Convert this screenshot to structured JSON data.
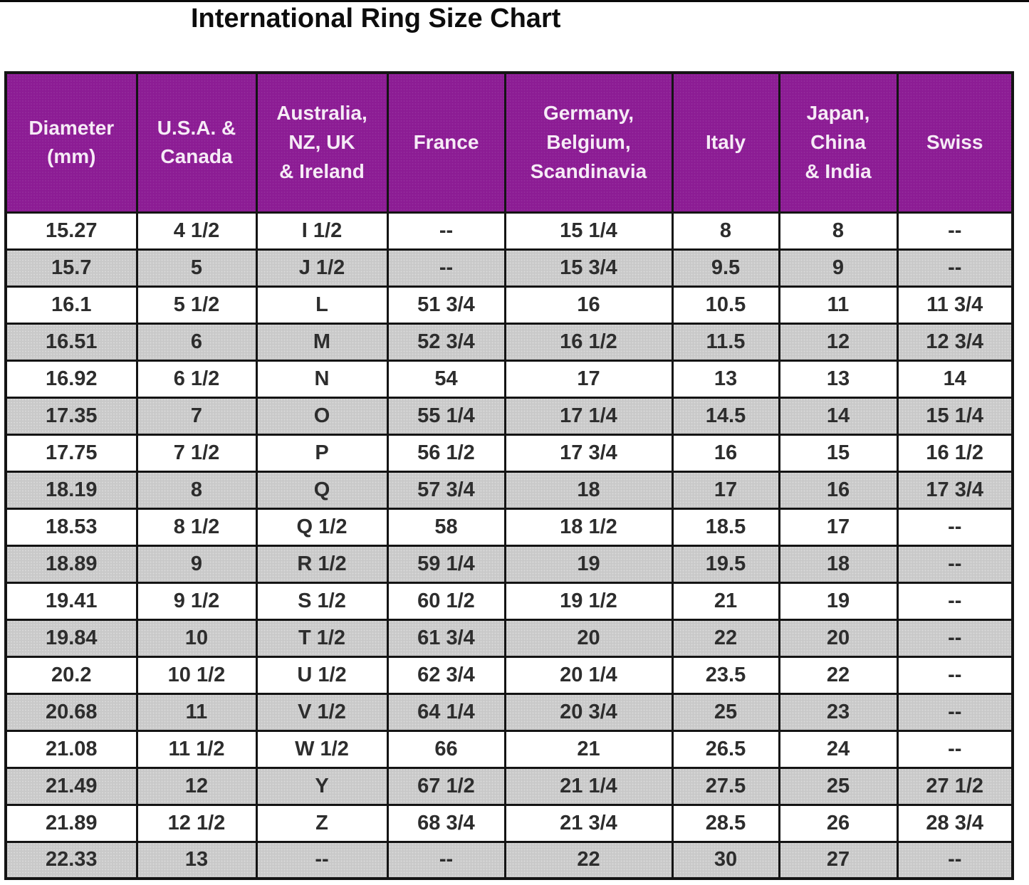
{
  "title": "International Ring Size Chart",
  "colors": {
    "header_bg": "#8C1C94",
    "header_text": "#F6EBF6",
    "stripe_gray": "#C9C9C9",
    "grid_line": "#141414",
    "data_text": "#2D2D2D",
    "page_bg": "#FFFFFF",
    "title_text": "#0D0D0D"
  },
  "table": {
    "header_display": [
      "Diameter\n(mm)",
      "U.S.A. &\nCanada",
      "Australia,\nNZ, UK\n& Ireland",
      "France",
      "Germany,\nBelgium,\nScandinavia",
      "Italy",
      "Japan,\nChina\n& India",
      "Swiss"
    ]
  },
  "chart_data": {
    "type": "table",
    "title": "International Ring Size Chart",
    "columns": [
      "Diameter (mm)",
      "U.S.A. & Canada",
      "Australia, NZ, UK & Ireland",
      "France",
      "Germany, Belgium, Scandinavia",
      "Italy",
      "Japan, China & India",
      "Swiss"
    ],
    "rows": [
      [
        "15.27",
        "4 1/2",
        "I 1/2",
        "--",
        "15 1/4",
        "8",
        "8",
        "--"
      ],
      [
        "15.7",
        "5",
        "J 1/2",
        "--",
        "15 3/4",
        "9.5",
        "9",
        "--"
      ],
      [
        "16.1",
        "5 1/2",
        "L",
        "51 3/4",
        "16",
        "10.5",
        "11",
        "11 3/4"
      ],
      [
        "16.51",
        "6",
        "M",
        "52 3/4",
        "16 1/2",
        "11.5",
        "12",
        "12 3/4"
      ],
      [
        "16.92",
        "6 1/2",
        "N",
        "54",
        "17",
        "13",
        "13",
        "14"
      ],
      [
        "17.35",
        "7",
        "O",
        "55 1/4",
        "17 1/4",
        "14.5",
        "14",
        "15 1/4"
      ],
      [
        "17.75",
        "7 1/2",
        "P",
        "56 1/2",
        "17 3/4",
        "16",
        "15",
        "16 1/2"
      ],
      [
        "18.19",
        "8",
        "Q",
        "57 3/4",
        "18",
        "17",
        "16",
        "17 3/4"
      ],
      [
        "18.53",
        "8 1/2",
        "Q 1/2",
        "58",
        "18 1/2",
        "18.5",
        "17",
        "--"
      ],
      [
        "18.89",
        "9",
        "R 1/2",
        "59 1/4",
        "19",
        "19.5",
        "18",
        "--"
      ],
      [
        "19.41",
        "9 1/2",
        "S 1/2",
        "60 1/2",
        "19 1/2",
        "21",
        "19",
        "--"
      ],
      [
        "19.84",
        "10",
        "T 1/2",
        "61 3/4",
        "20",
        "22",
        "20",
        "--"
      ],
      [
        "20.2",
        "10 1/2",
        "U 1/2",
        "62 3/4",
        "20 1/4",
        "23.5",
        "22",
        "--"
      ],
      [
        "20.68",
        "11",
        "V 1/2",
        "64 1/4",
        "20 3/4",
        "25",
        "23",
        "--"
      ],
      [
        "21.08",
        "11 1/2",
        "W 1/2",
        "66",
        "21",
        "26.5",
        "24",
        "--"
      ],
      [
        "21.49",
        "12",
        "Y",
        "67 1/2",
        "21 1/4",
        "27.5",
        "25",
        "27 1/2"
      ],
      [
        "21.89",
        "12 1/2",
        "Z",
        "68 3/4",
        "21 3/4",
        "28.5",
        "26",
        "28 3/4"
      ],
      [
        "22.33",
        "13",
        "--",
        "--",
        "22",
        "30",
        "27",
        "--"
      ]
    ]
  }
}
